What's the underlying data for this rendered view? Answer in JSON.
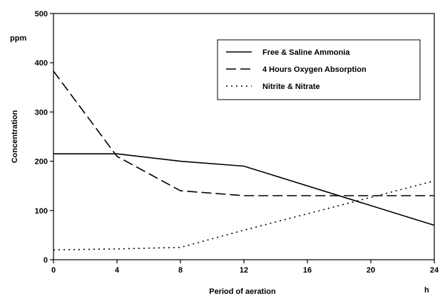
{
  "chart_data": {
    "type": "line",
    "ylabel": "Concentration",
    "yunit": "ppm",
    "xlabel": "Period of aeration",
    "xunit": "h",
    "xlim": [
      0,
      24
    ],
    "ylim": [
      0,
      500
    ],
    "xticks": [
      0,
      4,
      8,
      12,
      16,
      20,
      24
    ],
    "yticks": [
      0,
      100,
      200,
      300,
      400,
      500
    ],
    "grid": false,
    "legend_position": "top-right",
    "series": [
      {
        "name": "Free & Saline Ammonia",
        "style": "solid",
        "color": "#000000",
        "x": [
          0,
          4,
          8,
          12,
          24
        ],
        "y": [
          215,
          215,
          200,
          190,
          70
        ]
      },
      {
        "name": "4 Hours Oxygen Absorption",
        "style": "dashed",
        "color": "#000000",
        "x": [
          0,
          4,
          8,
          12,
          24
        ],
        "y": [
          383,
          210,
          140,
          130,
          130
        ]
      },
      {
        "name": "Nitrite & Nitrate",
        "style": "dotted",
        "color": "#000000",
        "x": [
          0,
          4,
          8,
          12,
          24
        ],
        "y": [
          20,
          22,
          25,
          60,
          160
        ]
      }
    ]
  }
}
